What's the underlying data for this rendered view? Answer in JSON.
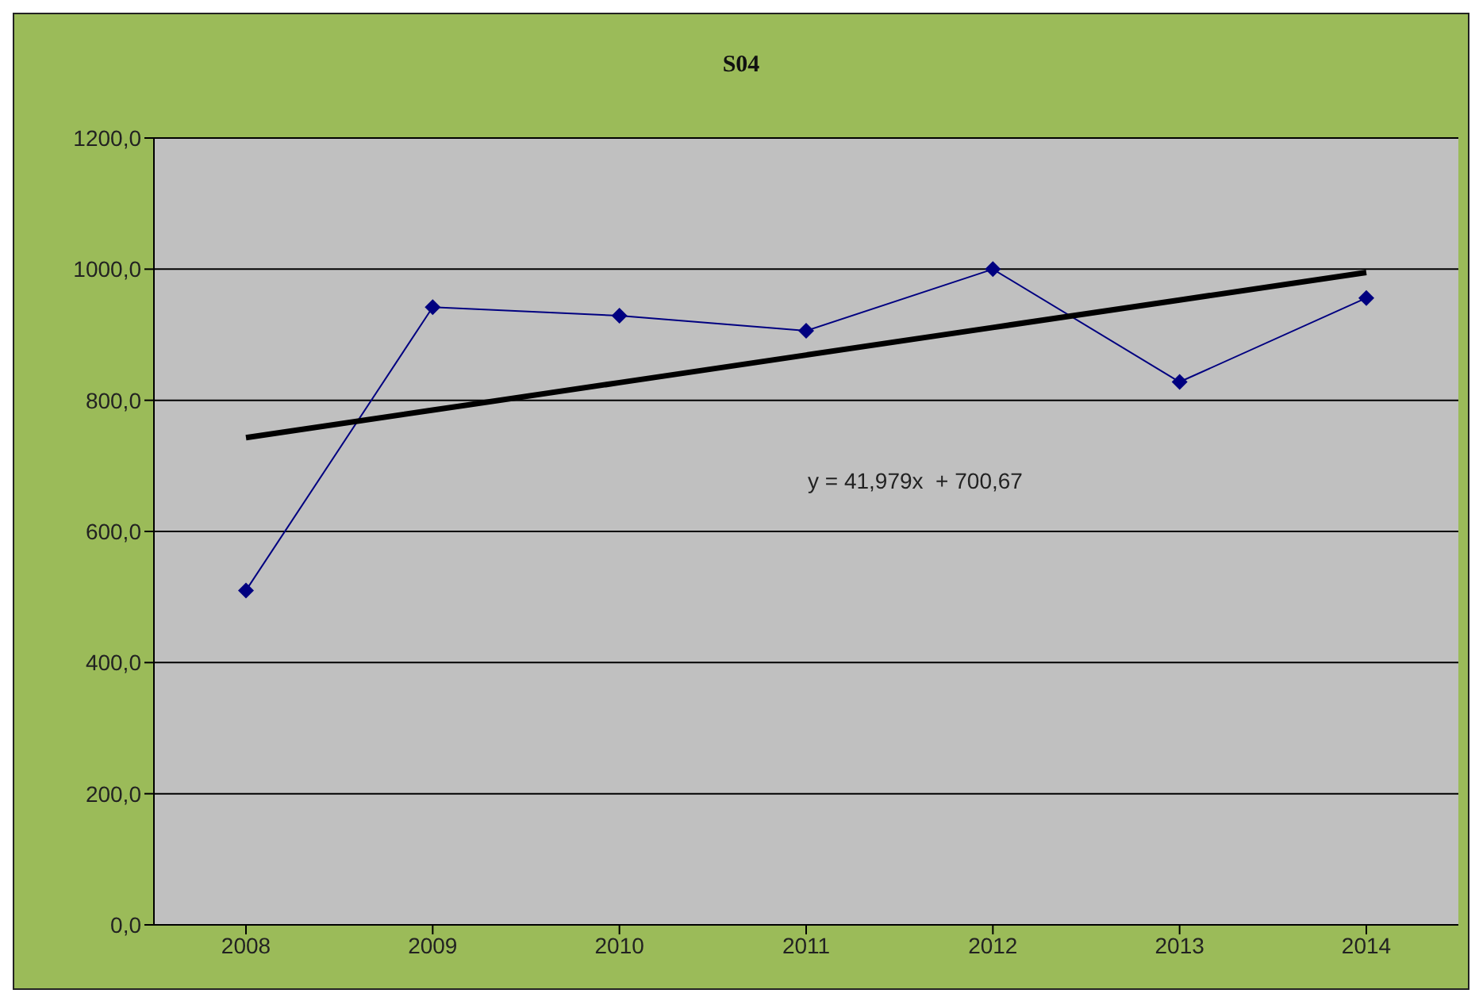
{
  "chart_data": {
    "type": "line",
    "title": "S04",
    "categories": [
      "2008",
      "2009",
      "2010",
      "2011",
      "2012",
      "2013",
      "2014"
    ],
    "series": [
      {
        "color": "#000080",
        "values": [
          510,
          942,
          929,
          906,
          1000,
          828,
          956
        ]
      },
      {
        "color": "#000000",
        "values": [
          743,
          785,
          827,
          869,
          911,
          953,
          995
        ],
        "marker": "none"
      }
    ],
    "ylim": [
      0,
      1200
    ],
    "yticks": [
      {
        "value": 0,
        "label": "0,0"
      },
      {
        "value": 200,
        "label": "200,0"
      },
      {
        "value": 400,
        "label": "400,0"
      },
      {
        "value": 600,
        "label": "600,0"
      },
      {
        "value": 800,
        "label": "800,0"
      },
      {
        "value": 1000,
        "label": "1000,0"
      },
      {
        "value": 1200,
        "label": "1200,0"
      }
    ],
    "grid": "y",
    "marker": "diamond",
    "annotations": [
      "y = 41,979x  + 700,67"
    ]
  }
}
